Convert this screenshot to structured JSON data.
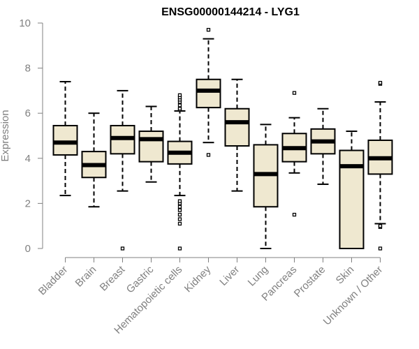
{
  "chart_data": {
    "type": "boxplot",
    "title": "ENSG00000144214 - LYG1",
    "xlabel": "",
    "ylabel": "Expression",
    "ylim": [
      0,
      10
    ],
    "yticks": [
      0,
      2,
      4,
      6,
      8,
      10
    ],
    "grid": false,
    "legend": "none",
    "box_fill": "#efe8d0",
    "box_stroke": "#000000",
    "axis_color": "#808080",
    "categories": [
      "Bladder",
      "Brain",
      "Breast",
      "Gastric",
      "Hematopoietic cells",
      "Kidney",
      "Liver",
      "Lung",
      "Pancreas",
      "Prostate",
      "Skin",
      "Unknown / Other"
    ],
    "boxes": [
      {
        "category": "Bladder",
        "whisker_low": 2.35,
        "q1": 4.15,
        "median": 4.7,
        "q3": 5.45,
        "whisker_high": 7.4,
        "outliers": []
      },
      {
        "category": "Brain",
        "whisker_low": 1.85,
        "q1": 3.15,
        "median": 3.7,
        "q3": 4.3,
        "whisker_high": 6.0,
        "outliers": []
      },
      {
        "category": "Breast",
        "whisker_low": 2.55,
        "q1": 4.2,
        "median": 4.9,
        "q3": 5.45,
        "whisker_high": 7.0,
        "outliers": [
          0.0
        ]
      },
      {
        "category": "Gastric",
        "whisker_low": 2.95,
        "q1": 3.85,
        "median": 4.85,
        "q3": 5.2,
        "whisker_high": 6.3,
        "outliers": []
      },
      {
        "category": "Hematopoietic cells",
        "whisker_low": 2.35,
        "q1": 3.75,
        "median": 4.25,
        "q3": 4.75,
        "whisker_high": 6.1,
        "outliers": [
          0.0,
          1.1,
          1.3,
          1.5,
          1.7,
          1.85,
          2.0,
          2.1,
          6.15,
          6.2,
          6.35,
          6.5,
          6.6,
          6.7,
          6.8
        ]
      },
      {
        "category": "Kidney",
        "whisker_low": 4.7,
        "q1": 6.25,
        "median": 7.0,
        "q3": 7.5,
        "whisker_high": 9.3,
        "outliers": [
          4.15,
          9.7
        ]
      },
      {
        "category": "Liver",
        "whisker_low": 2.55,
        "q1": 4.55,
        "median": 5.6,
        "q3": 6.2,
        "whisker_high": 7.5,
        "outliers": []
      },
      {
        "category": "Lung",
        "whisker_low": 0.0,
        "q1": 1.85,
        "median": 3.3,
        "q3": 4.6,
        "whisker_high": 5.5,
        "outliers": []
      },
      {
        "category": "Pancreas",
        "whisker_low": 3.35,
        "q1": 3.85,
        "median": 4.45,
        "q3": 5.1,
        "whisker_high": 5.8,
        "outliers": [
          1.5,
          6.9
        ]
      },
      {
        "category": "Prostate",
        "whisker_low": 2.85,
        "q1": 4.2,
        "median": 4.75,
        "q3": 5.3,
        "whisker_high": 6.2,
        "outliers": []
      },
      {
        "category": "Skin",
        "whisker_low": 0.0,
        "q1": 0.0,
        "median": 3.65,
        "q3": 4.35,
        "whisker_high": 5.2,
        "outliers": []
      },
      {
        "category": "Unknown / Other",
        "whisker_low": 1.1,
        "q1": 3.3,
        "median": 4.0,
        "q3": 4.8,
        "whisker_high": 6.5,
        "outliers": [
          0.0,
          0.95,
          1.0,
          7.3,
          7.35
        ]
      }
    ]
  }
}
